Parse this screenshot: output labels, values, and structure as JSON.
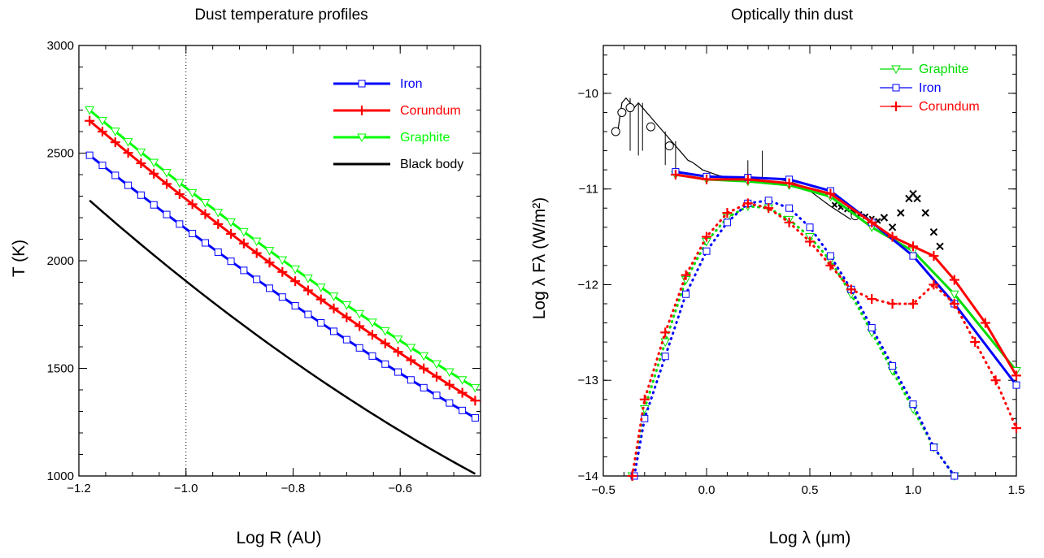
{
  "chart_data": [
    {
      "type": "line",
      "title": "Dust temperature profiles",
      "xlabel": "Log R (AU)",
      "ylabel": "T (K)",
      "xlim": [
        -1.2,
        -0.45
      ],
      "ylim": [
        1000,
        3000
      ],
      "xticks": [
        -1.2,
        -1.0,
        -0.8,
        -0.6
      ],
      "xtick_labels": [
        "−1.2",
        "−1.0",
        "−0.8",
        "−0.6"
      ],
      "yticks": [
        1000,
        1500,
        2000,
        2500,
        3000
      ],
      "ytick_labels": [
        "1000",
        "1500",
        "2000",
        "2500",
        "3000"
      ],
      "vline_x": -1.0,
      "legend_position": "top-right",
      "series": [
        {
          "name": "Iron",
          "color": "#0000ff",
          "marker": "square",
          "x_range": [
            -1.18,
            -0.46
          ],
          "y_start": 2490,
          "y_end": 1270,
          "curve": -0.08
        },
        {
          "name": "Corundum",
          "color": "#ff0000",
          "marker": "plus",
          "x_range": [
            -1.18,
            -0.46
          ],
          "y_start": 2650,
          "y_end": 1350,
          "curve": -0.08
        },
        {
          "name": "Graphite",
          "color": "#00ff00",
          "marker": "triangle-down",
          "x_range": [
            -1.18,
            -0.46
          ],
          "y_start": 2700,
          "y_end": 1410,
          "curve": -0.08
        },
        {
          "name": "Black body",
          "color": "#000000",
          "marker": "none",
          "x_range": [
            -1.18,
            -0.46
          ],
          "y_start": 2280,
          "y_end": 1010,
          "curve": -0.12
        }
      ]
    },
    {
      "type": "line",
      "title": "Optically thin dust",
      "xlabel": "Log λ (μm)",
      "ylabel": "Log λ Fλ (W/m²)",
      "xlim": [
        -0.5,
        1.5
      ],
      "ylim": [
        -14,
        -9.5
      ],
      "xticks": [
        -0.5,
        0.0,
        0.5,
        1.0,
        1.5
      ],
      "xtick_labels": [
        "−0.5",
        "0.0",
        "0.5",
        "1.0",
        "1.5"
      ],
      "yticks": [
        -14,
        -13,
        -12,
        -11,
        -10
      ],
      "ytick_labels": [
        "−14",
        "−13",
        "−12",
        "−11",
        "−10"
      ],
      "legend_position": "top-right",
      "legend": [
        {
          "name": "Graphite",
          "color": "#00dd00",
          "marker": "triangle-down"
        },
        {
          "name": "Iron",
          "color": "#0000ff",
          "marker": "square"
        },
        {
          "name": "Corundum",
          "color": "#ff0000",
          "marker": "plus"
        }
      ],
      "observed_spectrum": {
        "color": "#000000",
        "x": [
          -0.43,
          -0.41,
          -0.39,
          -0.37,
          -0.35,
          -0.33,
          -0.31,
          -0.29,
          -0.27,
          -0.25,
          -0.23,
          -0.21,
          -0.19,
          -0.17,
          -0.15,
          -0.13,
          -0.11,
          -0.09,
          -0.07,
          -0.05,
          -0.02,
          0.02,
          0.06,
          0.1,
          0.15,
          0.2,
          0.25,
          0.3,
          0.35,
          0.4,
          0.45,
          0.5,
          0.55,
          0.6,
          0.65,
          0.7
        ],
        "y": [
          -10.4,
          -10.1,
          -10.05,
          -10.1,
          -10.15,
          -10.1,
          -10.15,
          -10.2,
          -10.25,
          -10.3,
          -10.35,
          -10.4,
          -10.45,
          -10.5,
          -10.55,
          -10.6,
          -10.65,
          -10.7,
          -10.72,
          -10.75,
          -10.8,
          -10.83,
          -10.86,
          -10.88,
          -10.9,
          -10.9,
          -10.88,
          -10.89,
          -10.9,
          -10.92,
          -10.96,
          -11.02,
          -11.1,
          -11.18,
          -11.25,
          -11.32
        ],
        "photometry_x": [
          -0.44,
          -0.41,
          -0.37,
          -0.27,
          -0.18,
          0.72
        ],
        "photometry_y": [
          -10.4,
          -10.2,
          -10.15,
          -10.35,
          -10.55,
          -11.28
        ],
        "silicate_bump_x": [
          0.86,
          0.9,
          0.94,
          0.98,
          1.0,
          1.02,
          1.06,
          1.1,
          1.13
        ],
        "silicate_bump_y": [
          -11.3,
          -11.4,
          -11.25,
          -11.1,
          -11.05,
          -11.1,
          -11.25,
          -11.45,
          -11.6
        ]
      },
      "model_total": [
        {
          "name": "Graphite",
          "color": "#00dd00",
          "x": [
            -0.15,
            0.0,
            0.2,
            0.4,
            0.6,
            0.8,
            1.0,
            1.2,
            1.5
          ],
          "y": [
            -10.85,
            -10.9,
            -10.92,
            -10.96,
            -11.08,
            -11.4,
            -11.65,
            -12.1,
            -12.9
          ]
        },
        {
          "name": "Iron",
          "color": "#0000ff",
          "x": [
            -0.15,
            0.0,
            0.2,
            0.4,
            0.6,
            0.8,
            1.0,
            1.2,
            1.5
          ],
          "y": [
            -10.82,
            -10.87,
            -10.88,
            -10.9,
            -11.02,
            -11.35,
            -11.7,
            -12.2,
            -13.05
          ]
        },
        {
          "name": "Corundum",
          "color": "#ff0000",
          "x": [
            -0.15,
            0.0,
            0.2,
            0.4,
            0.6,
            0.8,
            0.9,
            1.0,
            1.1,
            1.2,
            1.35,
            1.5
          ],
          "y": [
            -10.85,
            -10.9,
            -10.9,
            -10.94,
            -11.05,
            -11.35,
            -11.5,
            -11.6,
            -11.7,
            -11.95,
            -12.4,
            -12.95
          ]
        }
      ],
      "model_dust": [
        {
          "name": "Graphite",
          "color": "#00dd00",
          "x": [
            -0.36,
            -0.3,
            -0.2,
            -0.1,
            0.0,
            0.1,
            0.2,
            0.3,
            0.4,
            0.5,
            0.6,
            0.7,
            0.8,
            0.9,
            1.0,
            1.1,
            1.2
          ],
          "y": [
            -14.0,
            -13.3,
            -12.6,
            -11.95,
            -11.55,
            -11.3,
            -11.18,
            -11.2,
            -11.32,
            -11.5,
            -11.75,
            -12.1,
            -12.5,
            -12.9,
            -13.3,
            -13.7,
            -14.0
          ]
        },
        {
          "name": "Iron",
          "color": "#0000ff",
          "x": [
            -0.35,
            -0.3,
            -0.2,
            -0.1,
            0.0,
            0.1,
            0.2,
            0.3,
            0.4,
            0.5,
            0.6,
            0.7,
            0.8,
            0.9,
            1.0,
            1.1,
            1.2
          ],
          "y": [
            -14.0,
            -13.4,
            -12.75,
            -12.1,
            -11.65,
            -11.35,
            -11.15,
            -11.12,
            -11.2,
            -11.4,
            -11.7,
            -12.05,
            -12.45,
            -12.85,
            -13.25,
            -13.7,
            -14.0
          ]
        },
        {
          "name": "Corundum",
          "color": "#ff0000",
          "x": [
            -0.36,
            -0.3,
            -0.2,
            -0.1,
            0.0,
            0.1,
            0.2,
            0.3,
            0.4,
            0.5,
            0.6,
            0.7,
            0.8,
            0.9,
            1.0,
            1.1,
            1.2,
            1.3,
            1.4,
            1.5
          ],
          "y": [
            -14.0,
            -13.2,
            -12.5,
            -11.9,
            -11.5,
            -11.25,
            -11.15,
            -11.2,
            -11.35,
            -11.55,
            -11.8,
            -12.05,
            -12.15,
            -12.2,
            -12.2,
            -12.0,
            -12.2,
            -12.6,
            -13.0,
            -13.5
          ]
        }
      ]
    }
  ]
}
